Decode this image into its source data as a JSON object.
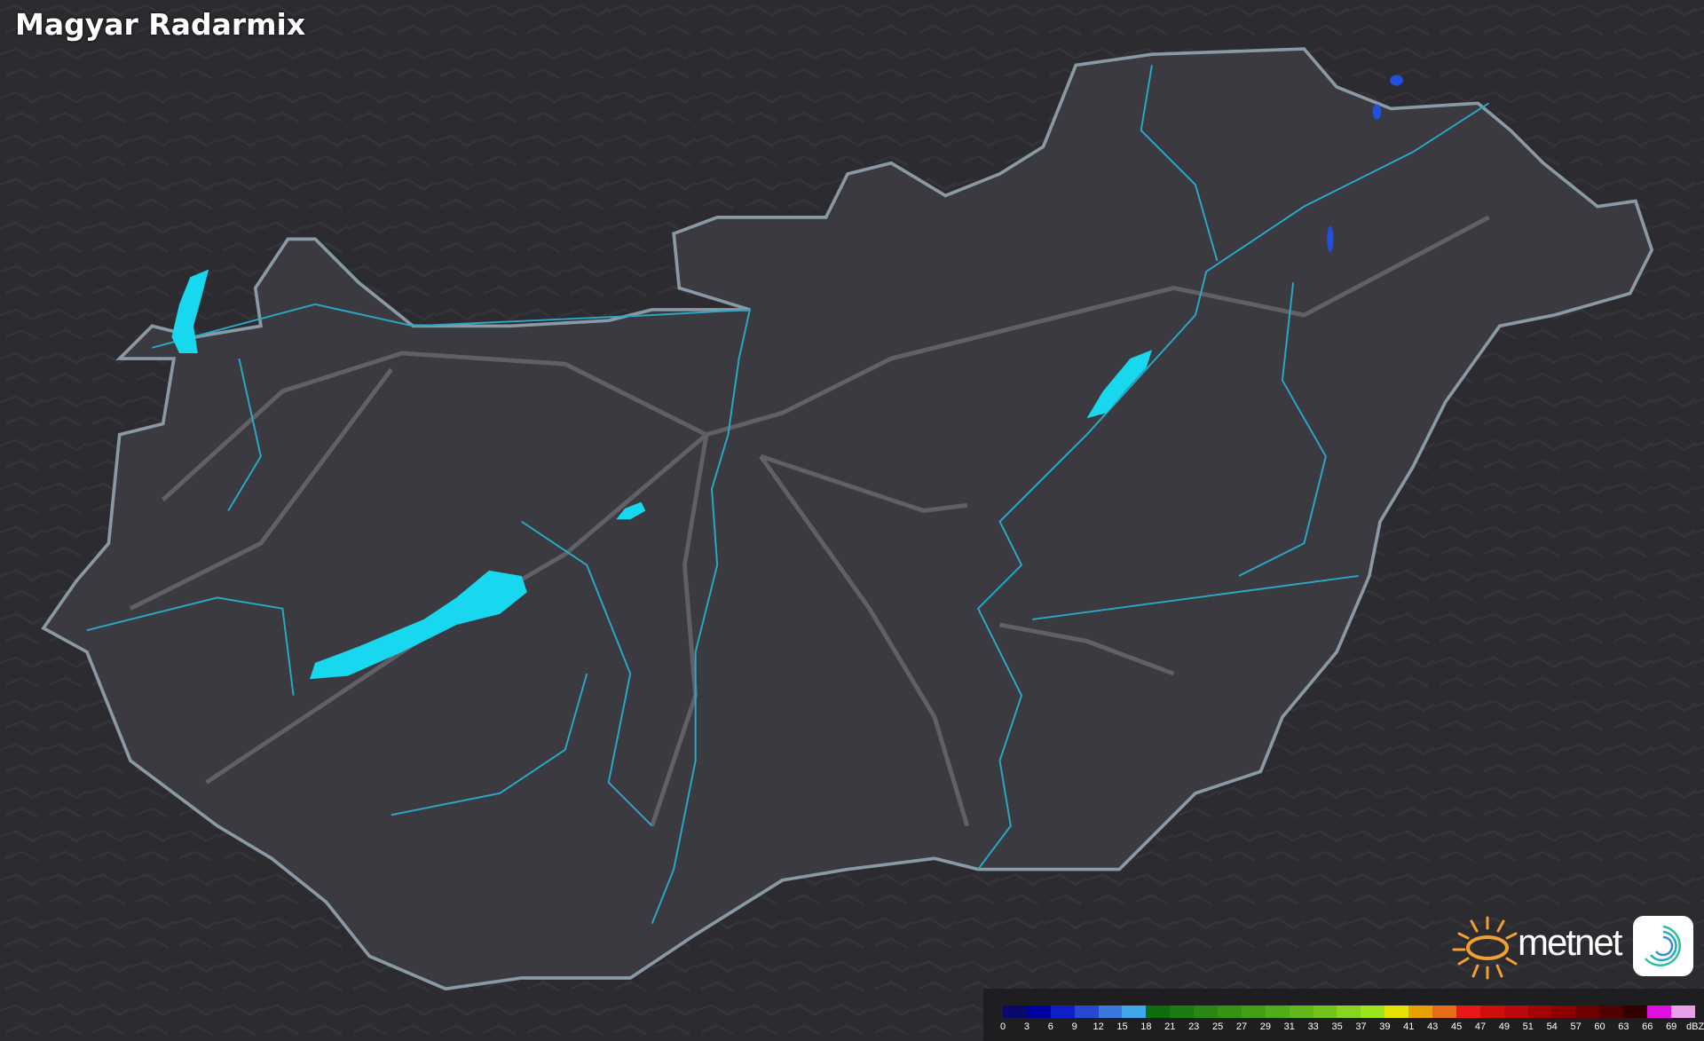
{
  "title": "Magyar Radarmix",
  "map": {
    "background_color": "#2a2a2e",
    "country_fill": "#3a3a40",
    "border_color": "#8a9aa4",
    "water_color": "#18d8f0",
    "river_color": "#2aa8c8",
    "road_color": "#6a6a70",
    "echo_color": "#2050e0"
  },
  "legend": {
    "unit": "dBZ",
    "labels": [
      "0",
      "3",
      "6",
      "9",
      "12",
      "15",
      "18",
      "21",
      "23",
      "25",
      "27",
      "29",
      "31",
      "33",
      "35",
      "37",
      "39",
      "41",
      "43",
      "45",
      "47",
      "49",
      "51",
      "54",
      "57",
      "60",
      "63",
      "66",
      "69"
    ],
    "colors": [
      "#0a0a6a",
      "#0000a0",
      "#1020c8",
      "#2848d0",
      "#3a78e0",
      "#40a8e8",
      "#0e6e0e",
      "#1a7c10",
      "#288812",
      "#369414",
      "#44a016",
      "#52ac18",
      "#60b81a",
      "#72c41c",
      "#88d420",
      "#9ce41e",
      "#e6e200",
      "#e6a000",
      "#e66c18",
      "#e81818",
      "#d00e0e",
      "#bc0808",
      "#a40404",
      "#8c0000",
      "#700000",
      "#520000",
      "#320000",
      "#e010e0",
      "#e8a0e8",
      "#90e8e8"
    ]
  },
  "logo": {
    "text": "metnet",
    "sun_color": "#f0a030"
  }
}
